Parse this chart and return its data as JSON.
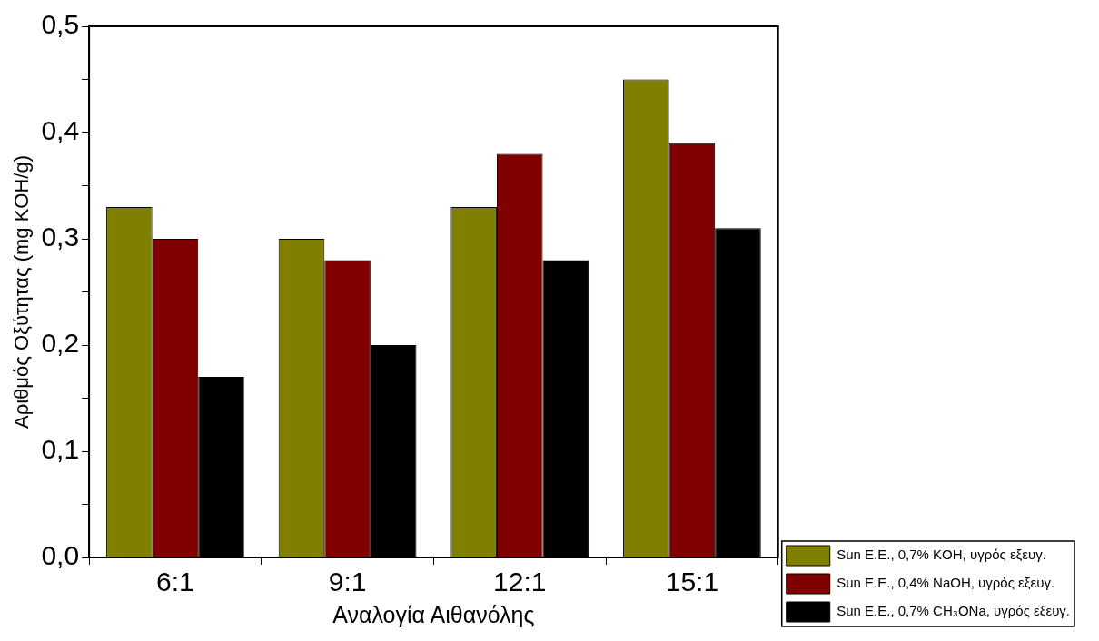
{
  "chart_data": {
    "type": "bar",
    "xlabel": "Αναλογία Αιθανόλης",
    "ylabel": "Αριθμός Οξύτητας (mg KOH/g)",
    "categories": [
      "6:1",
      "9:1",
      "12:1",
      "15:1"
    ],
    "series": [
      {
        "name": "Sun E.E., 0,7% KOH, υγρός εξευγ.",
        "color": "#808000",
        "values": [
          0.33,
          0.3,
          0.33,
          0.45
        ]
      },
      {
        "name": "Sun E.E., 0,4% NaOH, υγρός εξευγ.",
        "color": "#800000",
        "values": [
          0.3,
          0.28,
          0.38,
          0.39
        ]
      },
      {
        "name": "Sun E.E., 0,7% CH₃ONa, υγρός εξευγ.",
        "color": "#000000",
        "values": [
          0.17,
          0.2,
          0.28,
          0.31
        ]
      }
    ],
    "ylim": [
      0,
      0.5
    ],
    "yticks": [
      {
        "value": 0,
        "label": "0,0"
      },
      {
        "value": 0.05,
        "label": null
      },
      {
        "value": 0.1,
        "label": "0,1"
      },
      {
        "value": 0.15,
        "label": null
      },
      {
        "value": 0.2,
        "label": "0,2"
      },
      {
        "value": 0.25,
        "label": null
      },
      {
        "value": 0.3,
        "label": "0,3"
      },
      {
        "value": 0.35,
        "label": null
      },
      {
        "value": 0.4,
        "label": "0,4"
      },
      {
        "value": 0.45,
        "label": null
      },
      {
        "value": 0.5,
        "label": "0,5"
      }
    ],
    "grid": false,
    "legend": "bottom right"
  }
}
